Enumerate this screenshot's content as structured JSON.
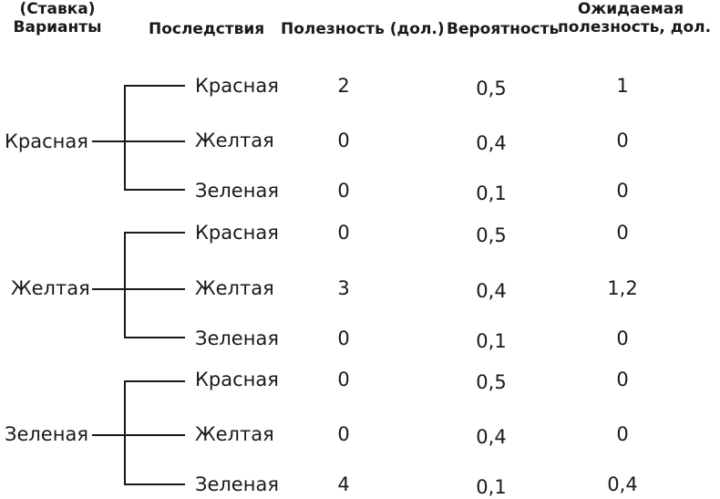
{
  "headers": {
    "options_line1": "(Ставка)",
    "options_line2": "Варианты",
    "outcomes": "Последствия",
    "utility": "Полезность (дол.)",
    "probability": "Вероятность",
    "expected_line1": "Ожидаемая",
    "expected_line2": "полезность, дол."
  },
  "groups": [
    {
      "bet": "Красная",
      "rows": [
        {
          "outcome": "Красная",
          "utility": "2",
          "probability": "0,5",
          "expected": "1"
        },
        {
          "outcome": "Желтая",
          "utility": "0",
          "probability": "0,4",
          "expected": "0"
        },
        {
          "outcome": "Зеленая",
          "utility": "0",
          "probability": "0,1",
          "expected": "0"
        }
      ]
    },
    {
      "bet": "Желтая",
      "rows": [
        {
          "outcome": "Красная",
          "utility": "0",
          "probability": "0,5",
          "expected": "0"
        },
        {
          "outcome": "Желтая",
          "utility": "3",
          "probability": "0,4",
          "expected": "1,2"
        },
        {
          "outcome": "Зеленая",
          "utility": "0",
          "probability": "0,1",
          "expected": "0"
        }
      ]
    },
    {
      "bet": "Зеленая",
      "rows": [
        {
          "outcome": "Красная",
          "utility": "0",
          "probability": "0,5",
          "expected": "0"
        },
        {
          "outcome": "Желтая",
          "utility": "0",
          "probability": "0,4",
          "expected": "0"
        },
        {
          "outcome": "Зеленая",
          "utility": "4",
          "probability": "0,1",
          "expected": "0,4"
        }
      ]
    }
  ]
}
